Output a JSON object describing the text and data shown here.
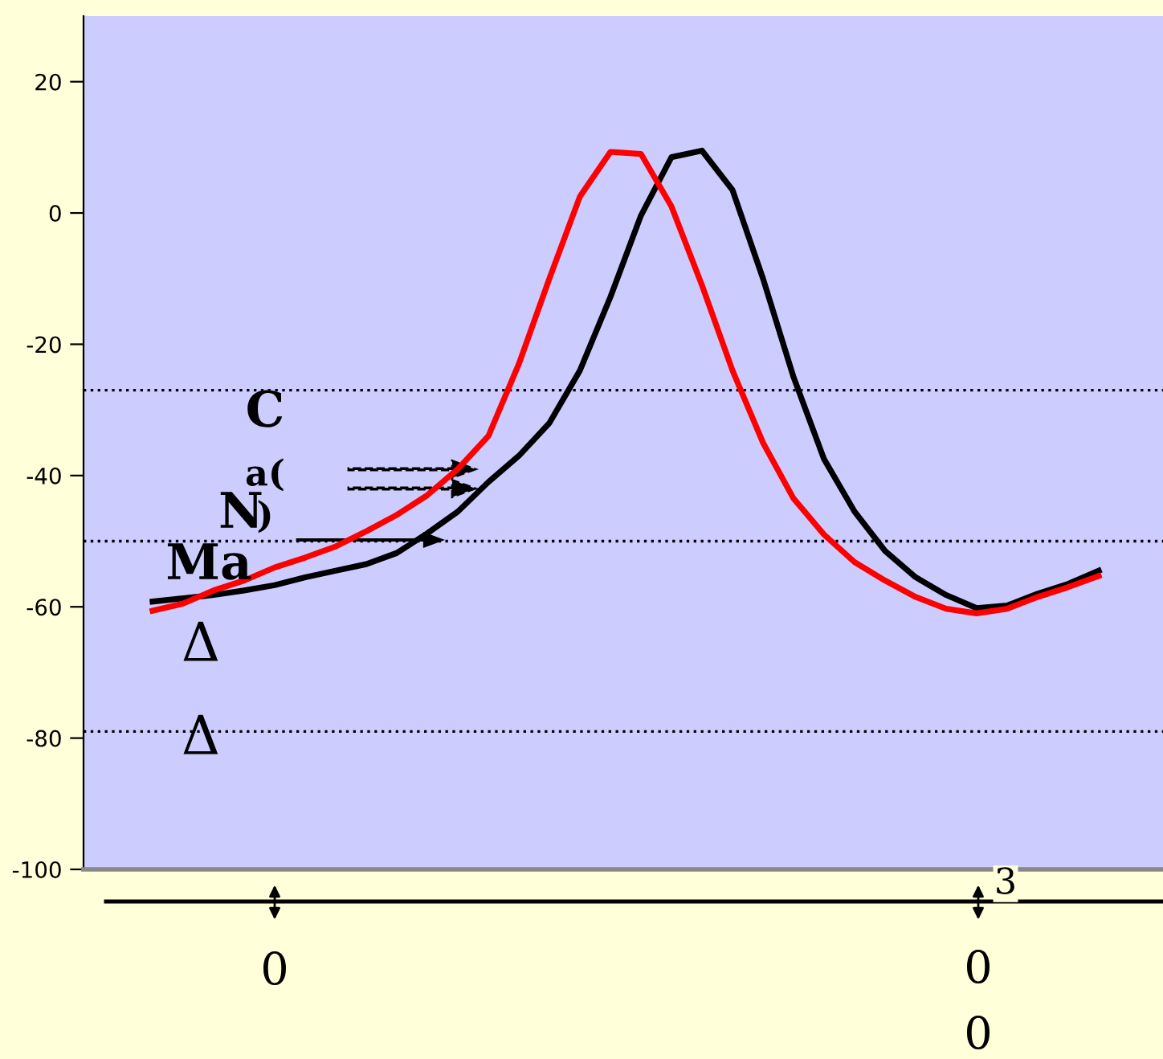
{
  "chart_data": {
    "type": "line",
    "categories": [
      null,
      null,
      null,
      null,
      null,
      null,
      null,
      null,
      null,
      null,
      null,
      null,
      null,
      null,
      null,
      null,
      null,
      null,
      null,
      null,
      null,
      null,
      null,
      null,
      null,
      null,
      null,
      null,
      null,
      null,
      null,
      null
    ],
    "series": [
      {
        "color": "#ff0000",
        "values": [
          -60.6,
          -59.5,
          -57.5,
          -56,
          -54,
          -52.5,
          -50.8,
          -48.5,
          -46,
          -43,
          -39,
          -34,
          -23,
          -10,
          2.5,
          9.3,
          9,
          1,
          -11,
          -24,
          -35,
          -43.5,
          -49,
          -53.2,
          -56,
          -58.5,
          -60.3,
          -61,
          -60.3,
          -58.5,
          -57,
          -55.3
        ]
      },
      {
        "color": "#000000",
        "values": [
          -59.2,
          -58.7,
          -58.2,
          -57.5,
          -56.7,
          -55.5,
          -54.5,
          -53.5,
          -51.8,
          -48.8,
          -45.5,
          -41,
          -37,
          -32,
          -24,
          -12.8,
          -0.4,
          8.5,
          9.5,
          3.5,
          -10,
          -25,
          -37.5,
          -45.5,
          -51.5,
          -55.5,
          -58.2,
          -60.2,
          -59.8,
          -58,
          -56.5,
          -54.5
        ]
      }
    ],
    "ylim": [
      -100,
      30
    ],
    "yticks": [
      -100,
      -80,
      -60,
      -40,
      -20,
      0,
      20
    ],
    "ref_lines": [
      {
        "axis": "y",
        "value": -27,
        "color": "#000000",
        "line_style": "dotted"
      },
      {
        "axis": "y",
        "value": -50,
        "color": "#000000",
        "line_style": "dotted"
      },
      {
        "axis": "y",
        "value": -79,
        "color": "#000000",
        "line_style": "dotted"
      }
    ],
    "annotations": [
      "C",
      "a(",
      "N",
      ")",
      "Ma",
      "Δ",
      "Δ",
      "0",
      "3",
      "0",
      "0"
    ],
    "grid": false,
    "legend": false,
    "marker": "none",
    "line_style": "solid"
  }
}
